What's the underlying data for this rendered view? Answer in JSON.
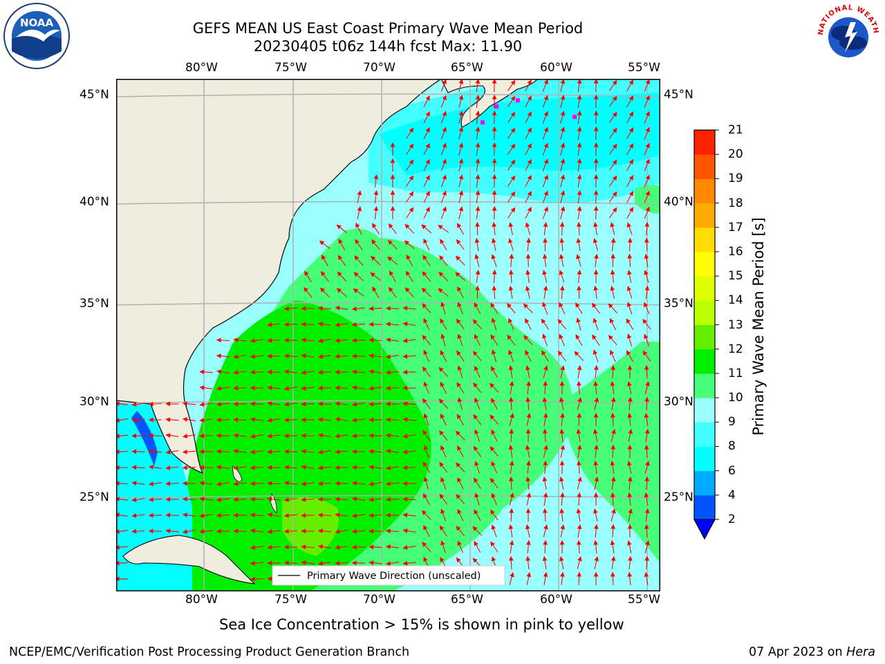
{
  "header": {
    "title_line1": "GEFS MEAN US East Coast Primary Wave Mean Period",
    "title_line2": "20230405 t06z 144h fcst   Max: 11.90"
  },
  "logos": {
    "left": {
      "text": "NOAA",
      "icon": "noaa-logo"
    },
    "right": {
      "text": "NATIONAL WEATHER SERVICE",
      "icon": "nws-logo"
    }
  },
  "map": {
    "lon_labels": [
      "80°W",
      "75°W",
      "70°W",
      "65°W",
      "60°W",
      "55°W"
    ],
    "lat_labels": [
      "45°N",
      "40°N",
      "35°N",
      "30°N",
      "25°N"
    ],
    "legend_label": "Primary Wave Direction (unscaled)",
    "arrow_color": "#ff0000",
    "land_color": "#efedde",
    "sea_ice_color": "#ff00ff"
  },
  "colorbar": {
    "label": "Primary Wave Mean Period [s]",
    "ticks": [
      "2",
      "4",
      "6",
      "8",
      "9",
      "10",
      "11",
      "12",
      "13",
      "14",
      "15",
      "16",
      "17",
      "18",
      "19",
      "20",
      "21"
    ],
    "colors": [
      "#0055ff",
      "#00aaff",
      "#00ffff",
      "#44ffff",
      "#99ffff",
      "#44ff77",
      "#00ee00",
      "#66ee00",
      "#bbff00",
      "#ddff00",
      "#ffff00",
      "#ffdd00",
      "#ffaa00",
      "#ff8800",
      "#ff5500",
      "#ff2200",
      "#ff0000"
    ],
    "under_color": "#0000ff"
  },
  "note": "Sea Ice Concentration > 15% is shown in pink to yellow",
  "footer": {
    "left": "NCEP/EMC/Verification Post Processing Product Generation Branch",
    "date": "07 Apr 2023 on",
    "host": "Hera"
  }
}
